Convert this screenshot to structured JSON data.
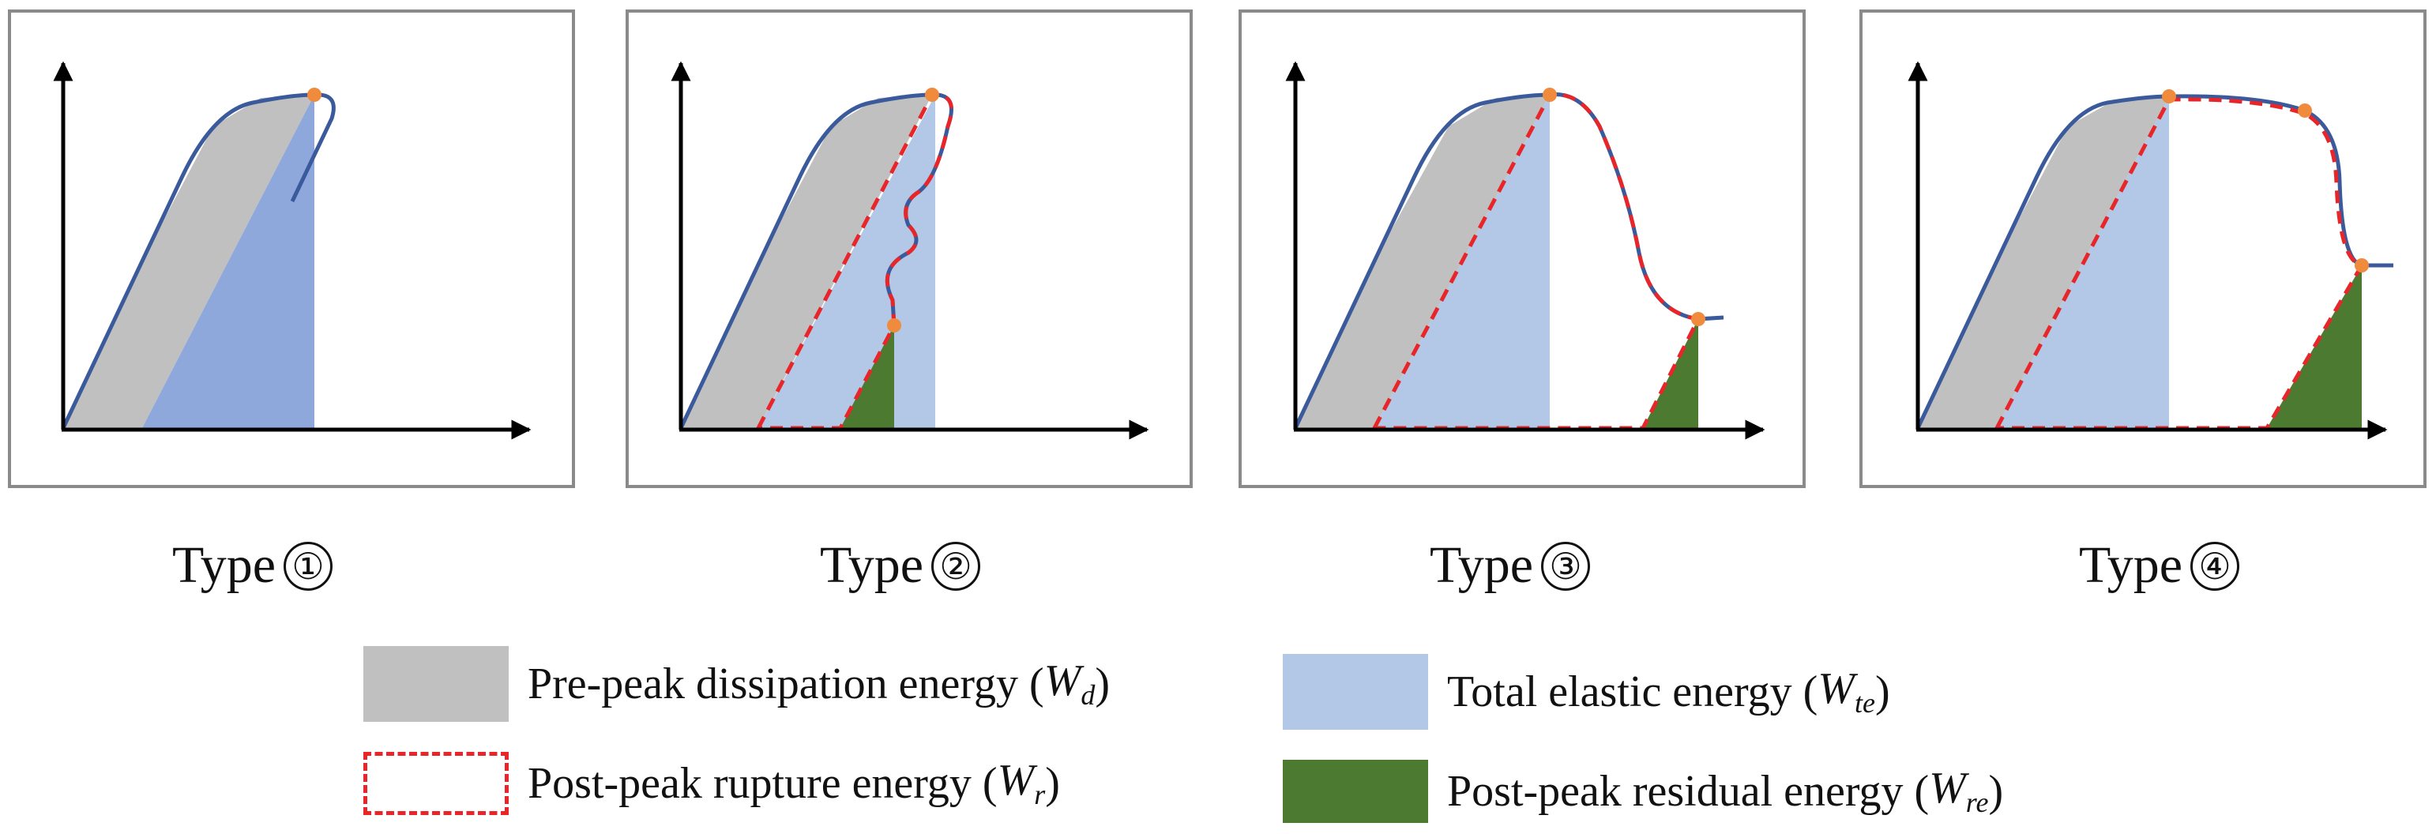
{
  "colors": {
    "frame": "#8a8a8a",
    "curve": "#3a5a9c",
    "peak_point": "#f08a3c",
    "dissipation_fill": "#c0c0c0",
    "elastic_fill": "#b3c7e6",
    "elastic_fill_type1": "#8ea8dc",
    "rupture_outline": "#e8262a",
    "residual_fill": "#4c7a30"
  },
  "panels": [
    {
      "id": "type-1",
      "caption_word": "Type",
      "caption_symbol": "①"
    },
    {
      "id": "type-2",
      "caption_word": "Type",
      "caption_symbol": "②"
    },
    {
      "id": "type-3",
      "caption_word": "Type",
      "caption_symbol": "③"
    },
    {
      "id": "type-4",
      "caption_word": "Type",
      "caption_symbol": "④"
    }
  ],
  "legend": {
    "dissipation": {
      "label": "Pre-peak dissipation energy (",
      "symbol": "W",
      "sub": "d",
      "close": ")"
    },
    "elastic": {
      "label": "Total elastic energy (",
      "symbol": "W",
      "sub": "te",
      "close": ")"
    },
    "rupture": {
      "label": "Post-peak rupture energy (",
      "symbol": "W",
      "sub": "r",
      "close": ")"
    },
    "residual": {
      "label": "Post-peak residual energy (",
      "symbol": "W",
      "sub": "re",
      "close": ")"
    }
  }
}
